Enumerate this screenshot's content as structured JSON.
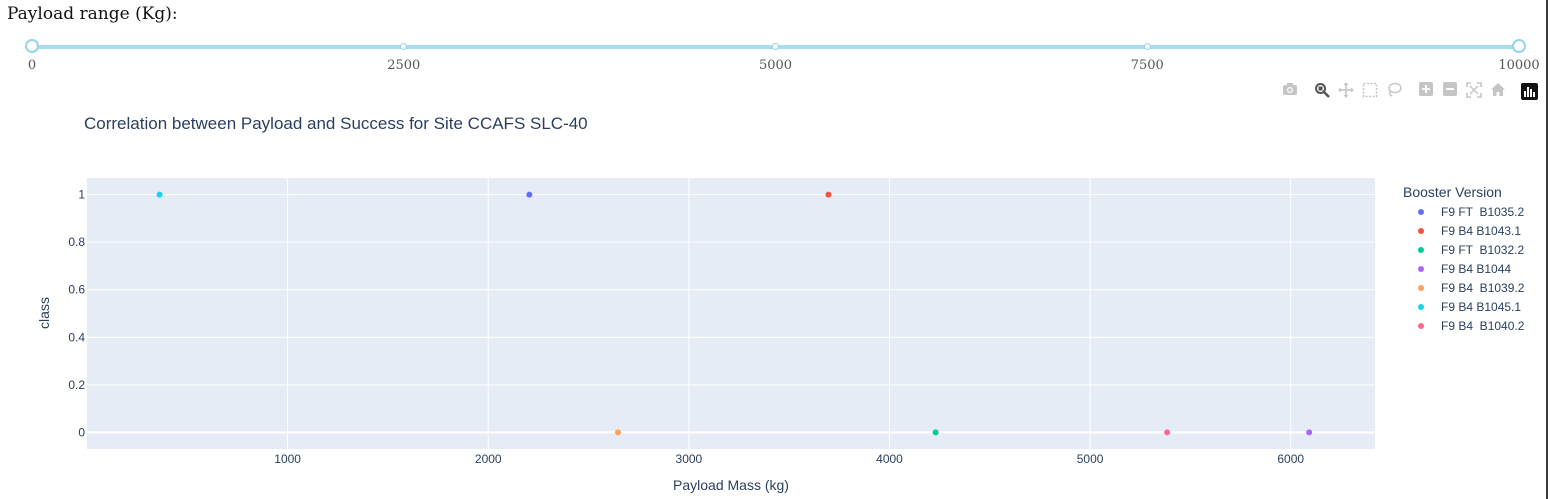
{
  "slider": {
    "label": "Payload range (Kg):",
    "min": 0,
    "max": 10000,
    "value": [
      0,
      10000
    ],
    "marks": [
      "0",
      "2500",
      "5000",
      "7500",
      "10000"
    ]
  },
  "modebar": {
    "buttons": [
      "camera-icon",
      "zoom-icon",
      "pan-icon",
      "box-select-icon",
      "lasso-select-icon",
      "zoom-in-icon",
      "zoom-out-icon",
      "autoscale-icon",
      "reset-axes-icon",
      "plotly-logo"
    ],
    "active": "zoom-icon"
  },
  "colors": {
    "plot_bg": "#E5ECF6",
    "grid": "#ffffff",
    "text": "#2a3f5f"
  },
  "chart_data": {
    "type": "scatter",
    "title": "Correlation between Payload and Success for Site CCAFS SLC-40",
    "xlabel": "Payload Mass (kg)",
    "ylabel": "class",
    "xlim": [
      0,
      6420
    ],
    "ylim": [
      -0.07,
      1.07
    ],
    "x_ticks": [
      1000,
      2000,
      3000,
      4000,
      5000,
      6000
    ],
    "y_ticks": [
      0,
      0.2,
      0.4,
      0.6,
      0.8,
      1
    ],
    "x_tick_labels": [
      "1000",
      "2000",
      "3000",
      "4000",
      "5000",
      "6000"
    ],
    "y_tick_labels": [
      "0",
      "0.2",
      "0.4",
      "0.6",
      "0.8",
      "1"
    ],
    "grid": true,
    "legend_title": "Booster Version",
    "legend_position": "right",
    "series": [
      {
        "name": "F9 FT  B1035.2",
        "color": "#636efa",
        "x": [
          2205
        ],
        "y": [
          1
        ]
      },
      {
        "name": "F9 B4 B1043.1",
        "color": "#EF553B",
        "x": [
          3696
        ],
        "y": [
          1
        ]
      },
      {
        "name": "F9 FT  B1032.2",
        "color": "#00cc96",
        "x": [
          4230
        ],
        "y": [
          0
        ]
      },
      {
        "name": "F9 B4 B1044",
        "color": "#ab63fa",
        "x": [
          6092
        ],
        "y": [
          0
        ]
      },
      {
        "name": "F9 B4  B1039.2",
        "color": "#FFA15A",
        "x": [
          2647
        ],
        "y": [
          0
        ]
      },
      {
        "name": "F9 B4 B1045.1",
        "color": "#19d3f3",
        "x": [
          362
        ],
        "y": [
          1
        ]
      },
      {
        "name": "F9 B4  B1040.2",
        "color": "#FF6692",
        "x": [
          5384
        ],
        "y": [
          0
        ]
      }
    ]
  }
}
